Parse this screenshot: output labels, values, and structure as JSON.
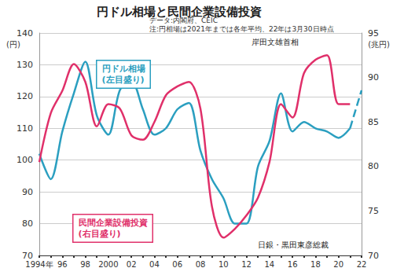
{
  "chart_data": {
    "type": "line",
    "title": "円ドル相場と民間企業設備投資",
    "subtitle": [
      "データ:内閣府、CEIC",
      "注:円相場は2021年までは各年平均、22年は3月30日時点"
    ],
    "annotations": [
      "岸田文雄首相",
      "日銀・黒田東彦総裁"
    ],
    "ylabel": "(円)",
    "y2label": "(兆円)",
    "categories": [
      "1994年",
      null,
      "96",
      null,
      "98",
      null,
      "2000",
      null,
      "02",
      null,
      "04",
      null,
      "06",
      null,
      "08",
      null,
      "10",
      null,
      "12",
      null,
      "14",
      null,
      "16",
      null,
      "18",
      null,
      "20",
      null,
      "22"
    ],
    "series": [
      {
        "name": "円ドル相場(左目盛り)",
        "color": "#2b9fc0",
        "axis": "y",
        "values": [
          102,
          94,
          109,
          121,
          131,
          114,
          108,
          122,
          125,
          116,
          108,
          110,
          116,
          118,
          103,
          94,
          88,
          80,
          80,
          98,
          106,
          121,
          109,
          112,
          110,
          109,
          107,
          110,
          122
        ]
      },
      {
        "name": "民間企業設備投資(右目盛り)",
        "color": "#e0306a",
        "axis": "y2",
        "values": [
          80.5,
          86,
          88.5,
          91.5,
          89.5,
          84.5,
          87,
          86.5,
          83.5,
          83,
          85,
          88,
          89,
          89.5,
          86.5,
          75.5,
          72,
          73,
          74.5,
          76.5,
          80.5,
          87,
          85.5,
          90.5,
          92,
          92.5,
          87,
          87,
          null
        ]
      }
    ],
    "ylim": [
      70,
      140
    ],
    "yticks": [
      70,
      80,
      90,
      100,
      110,
      120,
      130,
      140
    ],
    "y2lim": [
      70,
      95
    ],
    "y2ticks": [
      70,
      75,
      80,
      85,
      90,
      95
    ],
    "grid": true
  }
}
